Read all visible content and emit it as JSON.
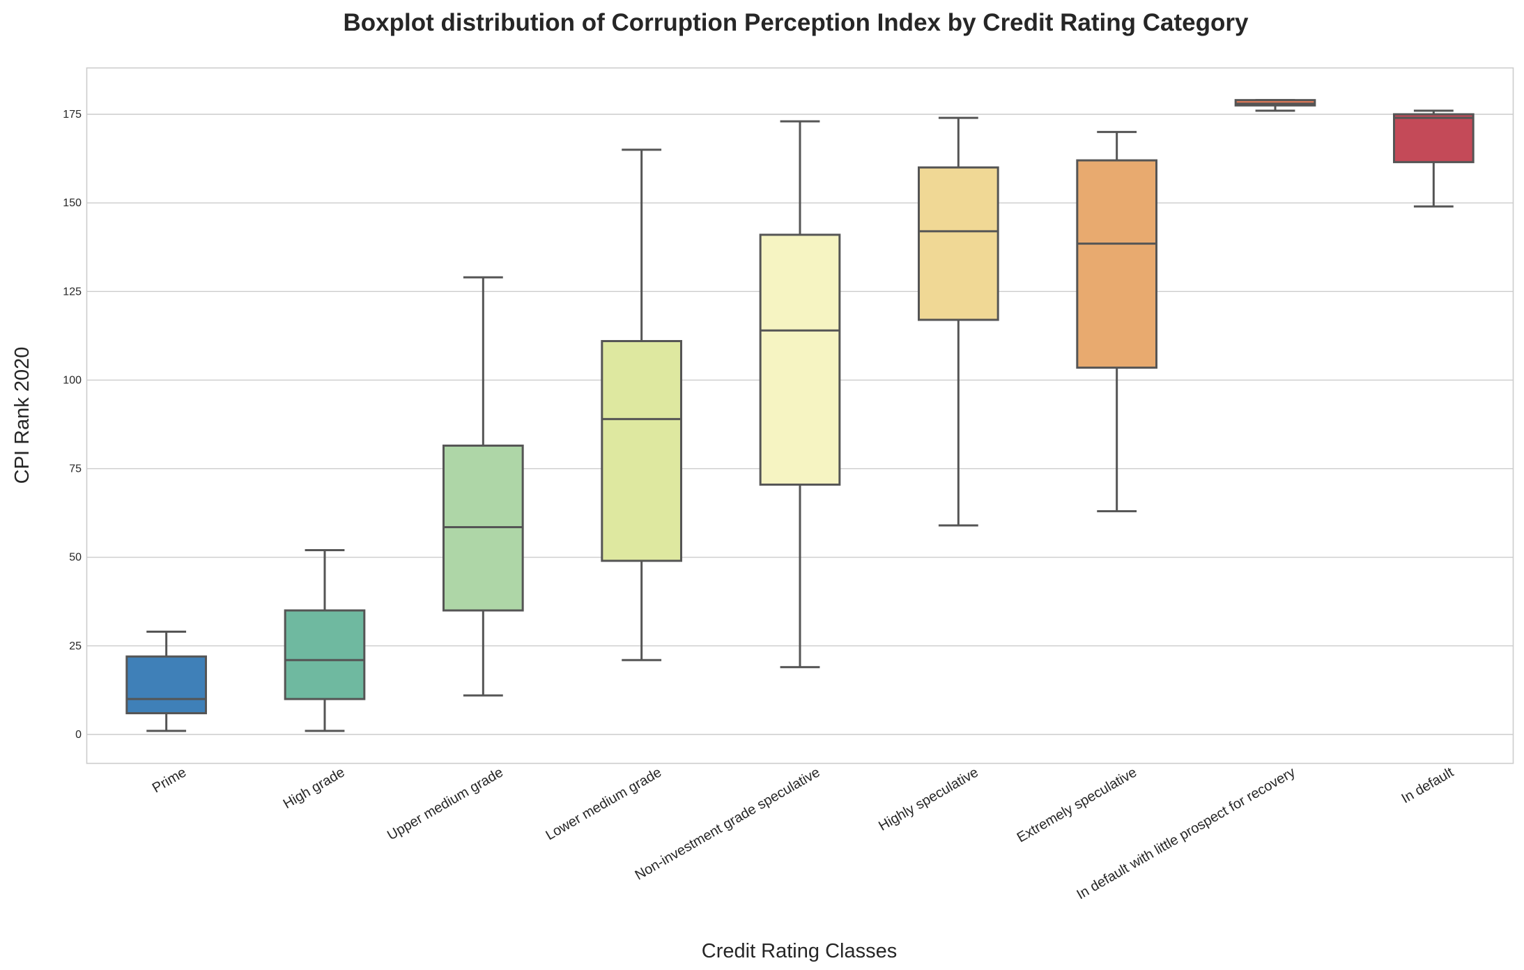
{
  "chart_data": {
    "type": "box",
    "title": "Boxplot distribution of Corruption Perception Index by Credit Rating Category",
    "xlabel": "Credit Rating Classes",
    "ylabel": "CPI Rank 2020",
    "ylim": [
      -8,
      188
    ],
    "yticks": [
      0,
      25,
      50,
      75,
      100,
      125,
      150,
      175
    ],
    "grid": true,
    "categories": [
      "Prime",
      "High grade",
      "Upper medium grade",
      "Lower medium grade",
      "Non-investment grade speculative",
      "Highly speculative",
      "Extremely speculative",
      "In default with little prospect for recovery",
      "In default"
    ],
    "boxes": [
      {
        "min": 1,
        "q1": 6,
        "median": 10,
        "q3": 22,
        "max": 29,
        "color": "#3f80b8"
      },
      {
        "min": 1,
        "q1": 10,
        "median": 21,
        "q3": 35,
        "max": 52,
        "color": "#6fb9a0"
      },
      {
        "min": 11,
        "q1": 35,
        "median": 58.5,
        "q3": 81.5,
        "max": 129,
        "color": "#aed6a7"
      },
      {
        "min": 21,
        "q1": 49,
        "median": 89,
        "q3": 111,
        "max": 165,
        "color": "#dee8a0"
      },
      {
        "min": 19,
        "q1": 70.5,
        "median": 114,
        "q3": 141,
        "max": 173,
        "color": "#f6f4c2"
      },
      {
        "min": 59,
        "q1": 117,
        "median": 142,
        "q3": 160,
        "max": 174,
        "color": "#f0d895"
      },
      {
        "min": 63,
        "q1": 103.5,
        "median": 138.5,
        "q3": 162,
        "max": 170,
        "color": "#e8aa6f"
      },
      {
        "min": 176,
        "q1": 177.5,
        "median": 178,
        "q3": 179,
        "max": 179,
        "color": "#e57a58"
      },
      {
        "min": 149,
        "q1": 161.5,
        "median": 174,
        "q3": 175,
        "max": 176,
        "color": "#c44a58"
      }
    ]
  }
}
